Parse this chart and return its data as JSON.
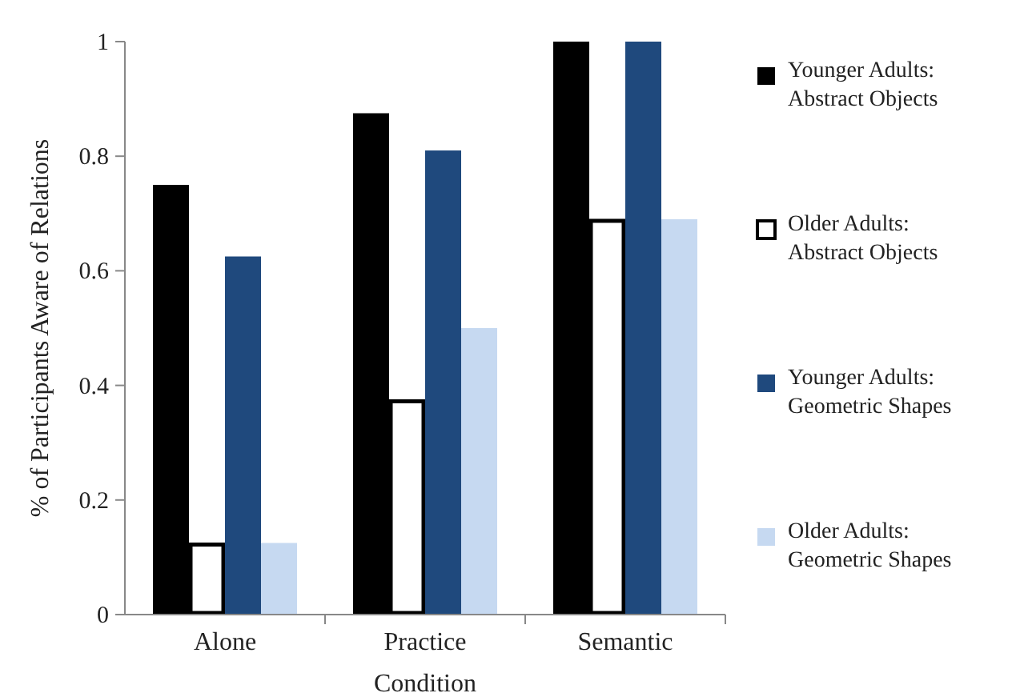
{
  "chart_data": {
    "type": "bar",
    "xlabel": "Condition",
    "ylabel": "% of Participants Aware of Relations",
    "categories": [
      "Alone",
      "Practice",
      "Semantic"
    ],
    "series": [
      {
        "name": "Younger Adults: Abstract Objects",
        "color": "#000000",
        "values": [
          0.75,
          0.875,
          1
        ]
      },
      {
        "name": "Older Adults: Abstract Objects",
        "color": "#ffffff",
        "values": [
          0.125,
          0.375,
          0.69
        ]
      },
      {
        "name": "Younger Adults: Geometric Shapes",
        "color": "#1f497d",
        "values": [
          0.625,
          0.81,
          1
        ]
      },
      {
        "name": "Older Adults: Geometric Shapes",
        "color": "#c6d9f1",
        "values": [
          0.125,
          0.5,
          0.69
        ]
      }
    ],
    "ylim": [
      0,
      1
    ],
    "yticks": [
      0,
      0.2,
      0.4,
      0.6,
      0.8,
      1
    ],
    "grid": false,
    "legend": "right"
  }
}
